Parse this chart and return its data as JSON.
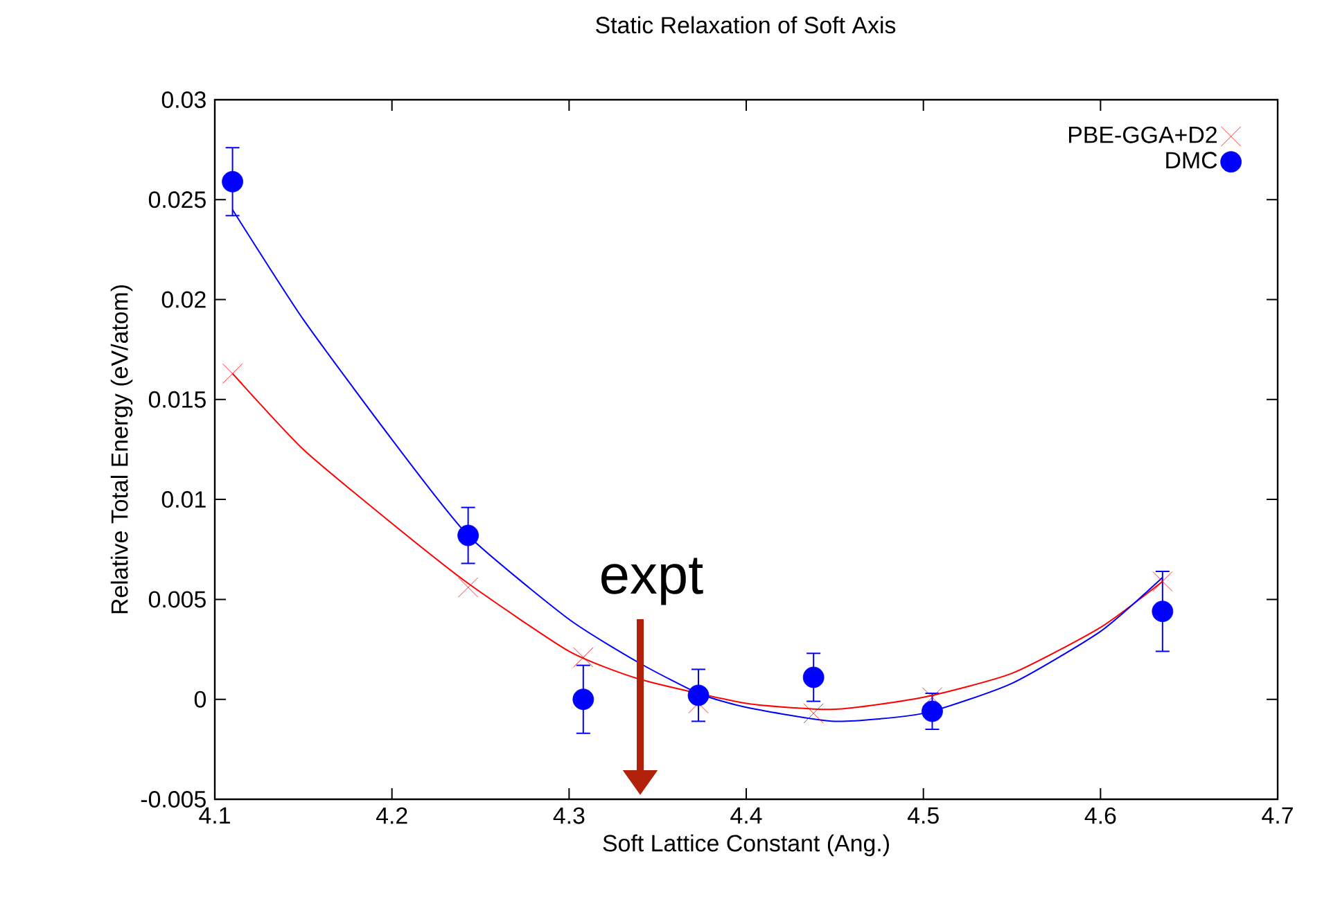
{
  "chart_data": {
    "type": "scatter",
    "title": "Static Relaxation of Soft Axis",
    "xlabel": "Soft Lattice Constant (Ang.)",
    "ylabel": "Relative Total Energy (eV/atom)",
    "xlim": [
      4.1,
      4.7
    ],
    "ylim": [
      -0.005,
      0.03
    ],
    "xticks": [
      4.1,
      4.2,
      4.3,
      4.4,
      4.5,
      4.6,
      4.7
    ],
    "yticks": [
      -0.005,
      0,
      0.005,
      0.01,
      0.015,
      0.02,
      0.025,
      0.03
    ],
    "legend": "top right",
    "annotations": [
      "expt"
    ],
    "series": [
      {
        "name": "PBE-GGA+D2",
        "marker": "cross",
        "color": "#ff0000",
        "x": [
          4.11,
          4.243,
          4.308,
          4.373,
          4.438,
          4.505,
          4.635
        ],
        "values": [
          0.0163,
          0.0056,
          0.0021,
          -0.0002,
          -0.0007,
          0.0001,
          0.0059
        ]
      },
      {
        "name": "DMC",
        "marker": "circle",
        "color": "#0000ff",
        "x": [
          4.11,
          4.243,
          4.308,
          4.373,
          4.438,
          4.505,
          4.635
        ],
        "values": [
          0.0259,
          0.0082,
          0.0,
          0.0002,
          0.0011,
          -0.0006,
          0.0044
        ],
        "errors": [
          0.0017,
          0.0014,
          0.0017,
          0.0013,
          0.0012,
          0.0009,
          0.002
        ]
      },
      {
        "type": "line",
        "marker": "none",
        "color": "#ff0000",
        "x": [
          4.11,
          4.15,
          4.2,
          4.243,
          4.3,
          4.34,
          4.4,
          4.45,
          4.5,
          4.55,
          4.6,
          4.635
        ],
        "values": [
          0.0163,
          0.0125,
          0.0088,
          0.0058,
          0.0024,
          0.001,
          -0.0002,
          -0.0005,
          0.0001,
          0.0013,
          0.0036,
          0.0059
        ]
      },
      {
        "type": "line",
        "marker": "none",
        "color": "#0000ff",
        "x": [
          4.11,
          4.15,
          4.2,
          4.243,
          4.3,
          4.34,
          4.373,
          4.4,
          4.45,
          4.5,
          4.55,
          4.6,
          4.635
        ],
        "values": [
          0.0245,
          0.019,
          0.013,
          0.0082,
          0.004,
          0.0018,
          0.0003,
          -0.0004,
          -0.0011,
          -0.0007,
          0.0008,
          0.0034,
          0.0061
        ]
      }
    ]
  }
}
